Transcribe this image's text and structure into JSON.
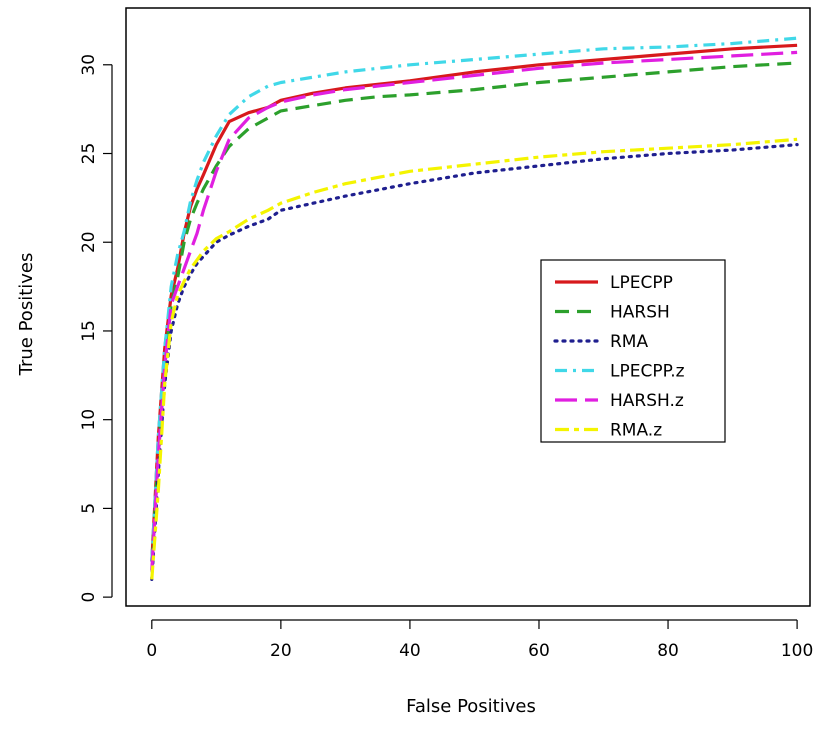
{
  "chart_data": {
    "type": "line",
    "title": "",
    "xlabel": "False Positives",
    "ylabel": "True Positives",
    "xlim": [
      -4,
      102
    ],
    "ylim": [
      -0.5,
      33.2
    ],
    "x_ticks": [
      0,
      20,
      40,
      60,
      80,
      100
    ],
    "y_ticks": [
      0,
      5,
      10,
      15,
      20,
      25,
      30
    ],
    "x_tick_labels": [
      "0",
      "20",
      "40",
      "60",
      "80",
      "100"
    ],
    "y_tick_labels": [
      "0",
      "5",
      "10",
      "15",
      "20",
      "25",
      "30"
    ],
    "grid": false,
    "legend_position": "right",
    "series": [
      {
        "name": "LPECPP",
        "color": "#d7191c",
        "dash": "solid",
        "x": [
          0,
          1,
          2,
          3,
          4,
          5,
          6,
          7,
          8,
          10,
          12,
          15,
          18,
          20,
          25,
          30,
          40,
          50,
          60,
          70,
          80,
          90,
          100
        ],
        "y": [
          2,
          9,
          14,
          17,
          18.5,
          20.5,
          22,
          23,
          23.8,
          25.5,
          26.8,
          27.3,
          27.6,
          28,
          28.4,
          28.7,
          29.1,
          29.6,
          30,
          30.3,
          30.6,
          30.9,
          31.1
        ]
      },
      {
        "name": "HARSH",
        "color": "#2ca02c",
        "dash": "dashed",
        "x": [
          0,
          1,
          2,
          3,
          4,
          5,
          6,
          7,
          8,
          10,
          12,
          15,
          18,
          20,
          25,
          30,
          35,
          40,
          50,
          60,
          70,
          80,
          90,
          100
        ],
        "y": [
          2,
          8,
          13,
          16.5,
          18,
          20,
          21.3,
          22.2,
          23,
          24.3,
          25.4,
          26.4,
          27,
          27.4,
          27.7,
          28,
          28.2,
          28.3,
          28.6,
          29,
          29.3,
          29.6,
          29.9,
          30.1
        ]
      },
      {
        "name": "RMA",
        "color": "#1f1f8f",
        "dash": "dotted",
        "x": [
          0,
          1,
          2,
          3,
          4,
          5,
          6,
          7,
          8,
          10,
          12,
          15,
          18,
          20,
          25,
          30,
          40,
          50,
          60,
          70,
          80,
          90,
          100
        ],
        "y": [
          1,
          7,
          12,
          15,
          16.5,
          17.5,
          18.2,
          18.8,
          19.2,
          20,
          20.4,
          20.9,
          21.3,
          21.8,
          22.2,
          22.6,
          23.3,
          23.9,
          24.3,
          24.7,
          25,
          25.2,
          25.5
        ]
      },
      {
        "name": "LPECPP.z",
        "color": "#40d8e8",
        "dash": "dashdot",
        "x": [
          0,
          1,
          2,
          3,
          4,
          5,
          6,
          7,
          8,
          10,
          12,
          15,
          18,
          20,
          25,
          30,
          40,
          50,
          60,
          70,
          80,
          90,
          100
        ],
        "y": [
          2,
          9,
          14,
          17.5,
          19.3,
          20.6,
          22.3,
          23.5,
          24.5,
          26,
          27.2,
          28.2,
          28.8,
          29,
          29.3,
          29.6,
          30,
          30.3,
          30.6,
          30.9,
          31,
          31.2,
          31.5
        ]
      },
      {
        "name": "HARSH.z",
        "color": "#e01fe0",
        "dash": "longdash",
        "x": [
          0,
          1,
          2,
          3,
          4,
          5,
          6,
          7,
          8,
          10,
          12,
          15,
          18,
          20,
          25,
          30,
          40,
          50,
          60,
          70,
          80,
          90,
          100
        ],
        "y": [
          1.5,
          8,
          13,
          16.5,
          17.5,
          18.5,
          19.5,
          20.5,
          21.8,
          24,
          25.8,
          27,
          27.6,
          27.9,
          28.3,
          28.6,
          29,
          29.4,
          29.8,
          30.1,
          30.3,
          30.5,
          30.7
        ]
      },
      {
        "name": "RMA.z",
        "color": "#f4f400",
        "dash": "twodash",
        "x": [
          0,
          1,
          2,
          3,
          4,
          5,
          6,
          7,
          8,
          10,
          12,
          15,
          18,
          20,
          25,
          30,
          40,
          50,
          60,
          70,
          80,
          90,
          100
        ],
        "y": [
          1,
          6,
          12,
          15.5,
          17,
          17.8,
          18.5,
          19,
          19.5,
          20.2,
          20.6,
          21.3,
          21.8,
          22.2,
          22.8,
          23.3,
          24,
          24.4,
          24.8,
          25.1,
          25.3,
          25.5,
          25.8
        ]
      }
    ]
  }
}
